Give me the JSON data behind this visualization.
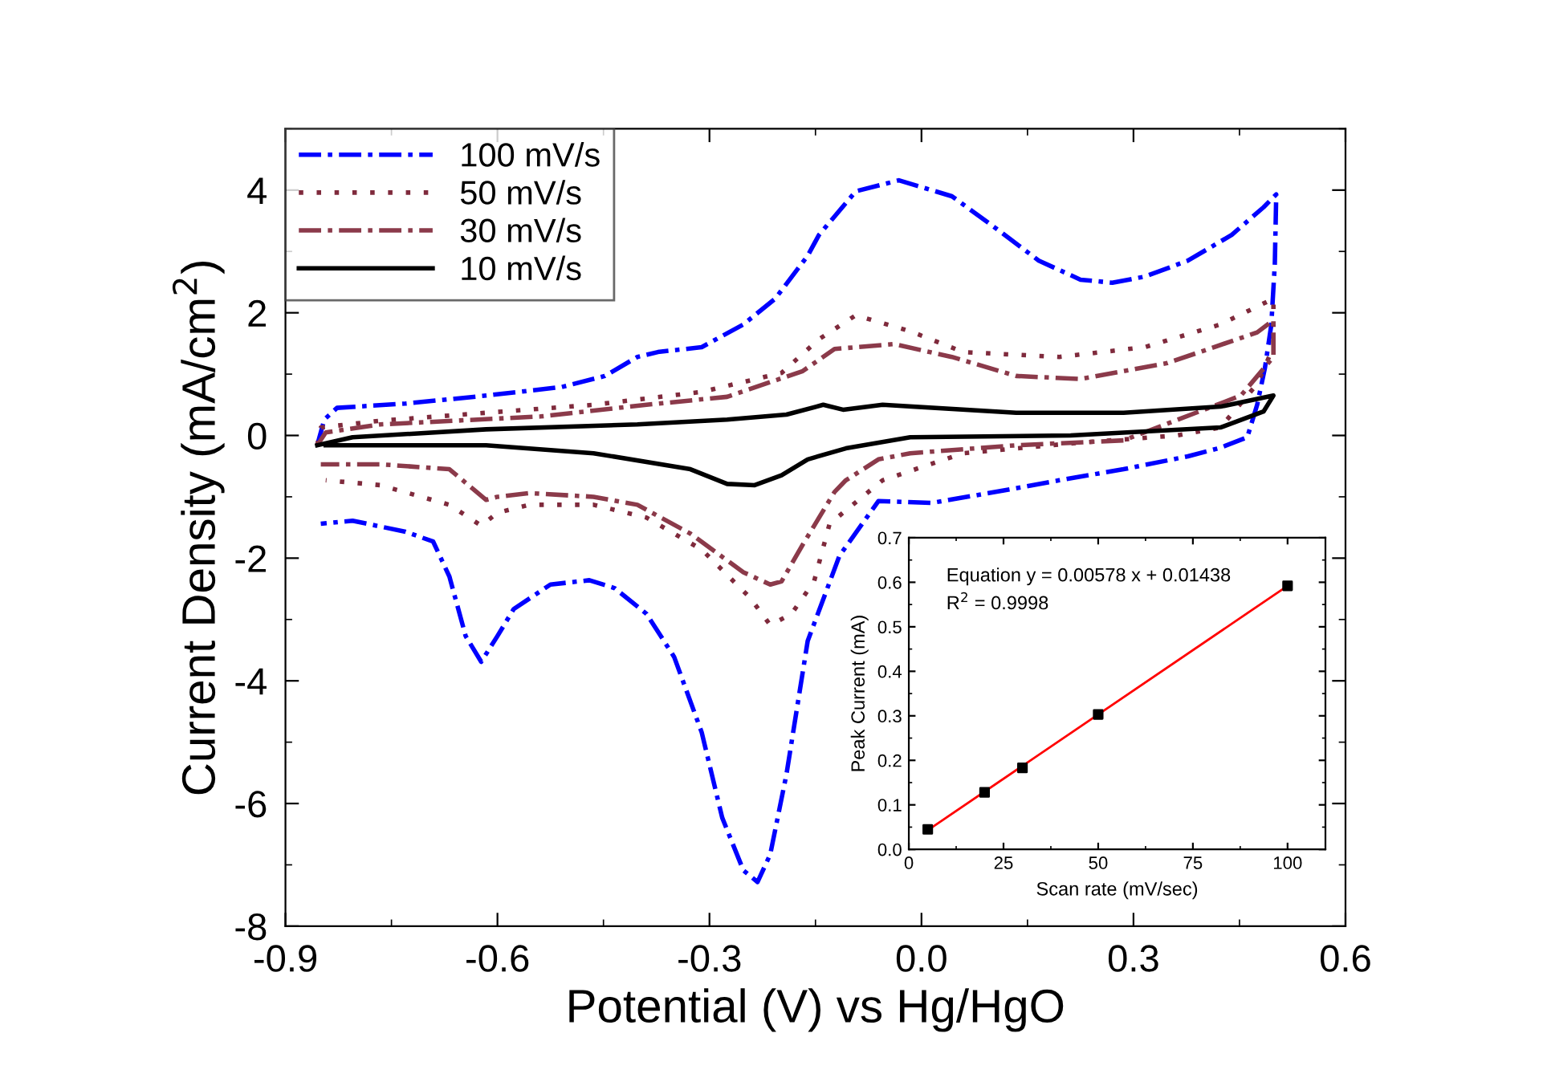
{
  "chart_data": [
    {
      "type": "line",
      "xlabel": "Potential (V) vs Hg/HgO",
      "ylabel": "Current Density (mA/cm$^{2}$)",
      "xlim": [
        -0.9,
        0.6
      ],
      "xticks": [
        {
          "value": -0.9,
          "label": "-0.9"
        },
        {
          "value": -0.6,
          "label": "-0.6"
        },
        {
          "value": -0.3,
          "label": "-0.3"
        },
        {
          "value": 0,
          "label": "0.0"
        },
        0.3,
        0.6
      ],
      "ylim": [
        -8,
        5
      ],
      "yticks": [
        -8,
        -6,
        -4,
        -2,
        0,
        2,
        4
      ],
      "legend": "top left",
      "grid": false,
      "marker": "none",
      "series": [
        {
          "name": "100 mV/s",
          "color": "#0000ff",
          "line_style": "dashed",
          "x": [
            -0.855,
            -0.845,
            -0.827,
            -0.73,
            -0.616,
            -0.509,
            -0.448,
            -0.402,
            -0.373,
            -0.311,
            -0.252,
            -0.207,
            -0.161,
            -0.145,
            -0.093,
            -0.032,
            0.043,
            0.105,
            0.166,
            0.225,
            0.27,
            0.316,
            0.377,
            0.439,
            0.484,
            0.502,
            0.5,
            0.495,
            0.486,
            0.475,
            0.461,
            0.423,
            0.377,
            0.286,
            0.195,
            0.105,
            0.014,
            -0.061,
            -0.116,
            -0.161,
            -0.191,
            -0.214,
            -0.232,
            -0.252,
            -0.282,
            -0.311,
            -0.35,
            -0.389,
            -0.434,
            -0.47,
            -0.525,
            -0.577,
            -0.6,
            -0.623,
            -0.645,
            -0.668,
            -0.691,
            -0.73,
            -0.805,
            -0.85
          ],
          "values": [
            -0.16,
            0.26,
            0.45,
            0.52,
            0.65,
            0.79,
            0.97,
            1.28,
            1.36,
            1.44,
            1.81,
            2.23,
            2.93,
            3.27,
            3.98,
            4.16,
            3.9,
            3.38,
            2.85,
            2.54,
            2.49,
            2.59,
            2.85,
            3.27,
            3.72,
            3.93,
            2.8,
            1.8,
            1.1,
            0.5,
            -0.03,
            -0.2,
            -0.34,
            -0.55,
            -0.73,
            -0.92,
            -1.1,
            -1.07,
            -1.96,
            -3.35,
            -5.52,
            -6.83,
            -7.28,
            -7.09,
            -6.23,
            -4.84,
            -3.61,
            -2.91,
            -2.49,
            -2.36,
            -2.43,
            -2.83,
            -3.27,
            -3.69,
            -3.27,
            -2.3,
            -1.73,
            -1.57,
            -1.39,
            -1.44
          ]
        },
        {
          "name": "50 mV/s",
          "color": "#7f2a3c",
          "line_style": "dotted",
          "x": [
            -0.855,
            -0.85,
            -0.766,
            -0.616,
            -0.464,
            -0.311,
            -0.198,
            -0.145,
            -0.093,
            -0.016,
            0.059,
            0.195,
            0.316,
            0.423,
            0.498,
            0.498,
            0.475,
            0.423,
            0.361,
            0.211,
            0.059,
            -0.055,
            -0.13,
            -0.152,
            -0.184,
            -0.214,
            -0.243,
            -0.311,
            -0.389,
            -0.464,
            -0.555,
            -0.6,
            -0.623,
            -0.668,
            -0.766,
            -0.843
          ],
          "values": [
            -0.16,
            0.13,
            0.24,
            0.37,
            0.5,
            0.71,
            1.02,
            1.57,
            1.96,
            1.7,
            1.36,
            1.28,
            1.44,
            1.81,
            2.23,
            1.44,
            0.84,
            0.13,
            0.0,
            -0.13,
            -0.29,
            -0.73,
            -1.44,
            -2.38,
            -2.91,
            -3.09,
            -2.64,
            -1.86,
            -1.34,
            -1.13,
            -1.13,
            -1.26,
            -1.47,
            -1.13,
            -0.81,
            -0.73
          ]
        },
        {
          "name": "30 mV/s",
          "color": "#8b3a4a",
          "line_style": "dashed",
          "x": [
            -0.855,
            -0.843,
            -0.766,
            -0.539,
            -0.389,
            -0.275,
            -0.168,
            -0.123,
            -0.039,
            0.043,
            0.134,
            0.225,
            0.348,
            0.475,
            0.498,
            0.498,
            0.452,
            0.286,
            0.134,
            -0.016,
            -0.061,
            -0.107,
            -0.123,
            -0.168,
            -0.198,
            -0.214,
            -0.252,
            -0.327,
            -0.402,
            -0.464,
            -0.555,
            -0.6,
            -0.616,
            -0.668,
            -0.766,
            -0.85
          ],
          "values": [
            -0.16,
            0.05,
            0.18,
            0.31,
            0.5,
            0.63,
            1.05,
            1.41,
            1.49,
            1.28,
            0.97,
            0.92,
            1.18,
            1.68,
            1.88,
            1.28,
            0.65,
            -0.08,
            -0.16,
            -0.29,
            -0.39,
            -0.73,
            -0.92,
            -1.78,
            -2.38,
            -2.43,
            -2.23,
            -1.6,
            -1.13,
            -1.0,
            -0.94,
            -1.0,
            -1.05,
            -0.55,
            -0.47,
            -0.47
          ]
        },
        {
          "name": "10 mV/s",
          "color": "#000000",
          "line_style": "solid",
          "x": [
            -0.855,
            -0.805,
            -0.616,
            -0.402,
            -0.275,
            -0.191,
            -0.139,
            -0.111,
            -0.055,
            0.134,
            0.286,
            0.423,
            0.498,
            0.484,
            0.423,
            0.211,
            -0.016,
            -0.107,
            -0.161,
            -0.198,
            -0.236,
            -0.275,
            -0.327,
            -0.464,
            -0.616,
            -0.843
          ],
          "values": [
            -0.16,
            -0.03,
            0.1,
            0.18,
            0.26,
            0.34,
            0.5,
            0.42,
            0.5,
            0.37,
            0.37,
            0.47,
            0.65,
            0.39,
            0.13,
            0.0,
            -0.03,
            -0.21,
            -0.39,
            -0.65,
            -0.81,
            -0.79,
            -0.55,
            -0.29,
            -0.16,
            -0.16
          ]
        }
      ]
    },
    {
      "type": "scatter",
      "xlabel": "Scan rate (mV/sec)",
      "ylabel": "Peak Current (mA)",
      "xlim": [
        0,
        110
      ],
      "xticks": [
        0,
        25,
        50,
        75,
        100
      ],
      "ylim": [
        0,
        0.7
      ],
      "yticks": [
        {
          "value": 0,
          "label": "0.0"
        },
        0.1,
        0.2,
        0.3,
        0.4,
        0.5,
        0.6,
        0.7
      ],
      "legend": false,
      "grid": false,
      "annotations": [
        "Equation y = 0.00578 x + 0.01438",
        "R$^{2}$ = 0.9998"
      ],
      "series": [
        {
          "type": "scatter",
          "color": "#000000",
          "marker": "square",
          "x": [
            5,
            20,
            30,
            50,
            100
          ],
          "values": [
            0.045,
            0.128,
            0.183,
            0.303,
            0.592
          ]
        },
        {
          "type": "line",
          "color": "#ff0000",
          "marker": "none",
          "line_style": "solid",
          "x": [
            5,
            100
          ],
          "values": [
            0.043,
            0.592
          ]
        }
      ]
    }
  ]
}
